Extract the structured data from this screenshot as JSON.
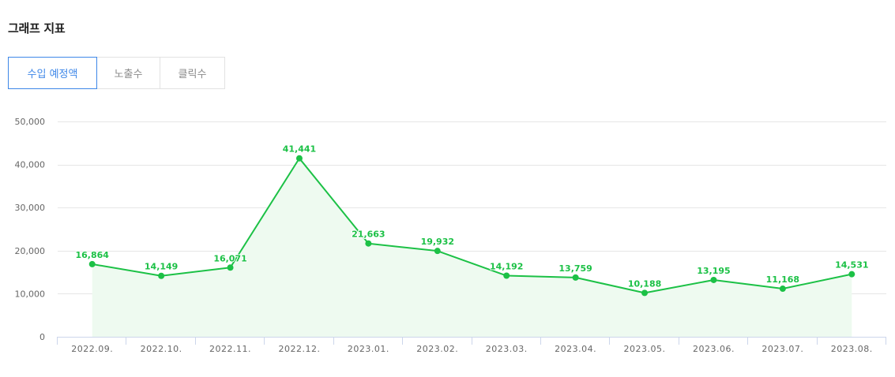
{
  "header": {
    "title": "그래프 지표"
  },
  "tabs": [
    {
      "label": "수입 예정액",
      "active": true
    },
    {
      "label": "노출수",
      "active": false
    },
    {
      "label": "클릭수",
      "active": false
    }
  ],
  "colors": {
    "accent": "#3e87e8",
    "series_line": "#1cc146",
    "series_area": "#eefaf0",
    "grid": "#e6e6e6",
    "axis": "#ccd6eb"
  },
  "chart_data": {
    "type": "area",
    "categories": [
      "2022.09.",
      "2022.10.",
      "2022.11.",
      "2022.12.",
      "2023.01.",
      "2023.02.",
      "2023.03.",
      "2023.04.",
      "2023.05.",
      "2023.06.",
      "2023.07.",
      "2023.08."
    ],
    "values": [
      16864,
      14149,
      16071,
      41441,
      21663,
      19932,
      14192,
      13759,
      10188,
      13195,
      11168,
      14531
    ],
    "value_labels": [
      "16,864",
      "14,149",
      "16,071",
      "41,441",
      "21,663",
      "19,932",
      "14,192",
      "13,759",
      "10,188",
      "13,195",
      "11,168",
      "14,531"
    ],
    "ylim": [
      0,
      50000
    ],
    "yticks": [
      0,
      10000,
      20000,
      30000,
      40000,
      50000
    ],
    "ytick_labels": [
      "0",
      "10,000",
      "20,000",
      "30,000",
      "40,000",
      "50,000"
    ],
    "grid": true,
    "legend": "none",
    "data_labels": true
  }
}
